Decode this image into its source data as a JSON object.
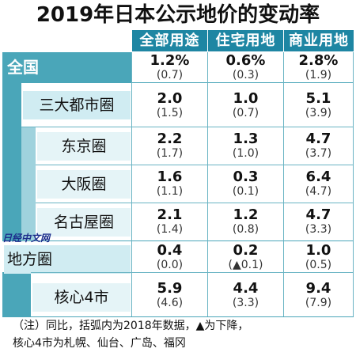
{
  "title": "2019年日本公示地价的变动率",
  "header": {
    "col1": "全部用途",
    "col2": "住宅用地",
    "col3": "商业用地"
  },
  "colors": {
    "header_bg": "#1e86a3",
    "band_bg": "#4aa6b9",
    "side_light": "#9fd2dd",
    "label_bg_mid": "#d0ecf2",
    "label_bg_light": "#e5f4f7"
  },
  "rows": [
    {
      "label": "全国",
      "v1": "1.2%",
      "p1": "(0.7)",
      "v2": "0.6%",
      "p2": "(0.3)",
      "v3": "2.8%",
      "p3": "(1.9)"
    },
    {
      "label": "三大都市圈",
      "v1": "2.0",
      "p1": "(1.5)",
      "v2": "1.0",
      "p2": "(0.7)",
      "v3": "5.1",
      "p3": "(3.9)"
    },
    {
      "label": "东京圈",
      "v1": "2.2",
      "p1": "(1.7)",
      "v2": "1.3",
      "p2": "(1.0)",
      "v3": "4.7",
      "p3": "(3.7)"
    },
    {
      "label": "大阪圈",
      "v1": "1.6",
      "p1": "(1.1)",
      "v2": "0.3",
      "p2": "(0.1)",
      "v3": "6.4",
      "p3": "(4.7)"
    },
    {
      "label": "名古屋圈",
      "v1": "2.1",
      "p1": "(1.4)",
      "v2": "1.2",
      "p2": "(0.8)",
      "v3": "4.7",
      "p3": "(3.3)"
    },
    {
      "label": "地方圈",
      "v1": "0.4",
      "p1": "(0.0)",
      "v2": "0.2",
      "p2": "(▲0.1)",
      "v3": "1.0",
      "p3": "(0.5)"
    },
    {
      "label": "核心4市",
      "v1": "5.9",
      "p1": "(4.6)",
      "v2": "4.4",
      "p2": "(3.3)",
      "v3": "9.4",
      "p3": "(7.9)"
    }
  ],
  "watermark": "日经中文网",
  "note_line1": "（注）同比，括弧内为2018年数据，▲为下降，",
  "note_line2": "核心4市为札幌、仙台、广岛、福冈"
}
